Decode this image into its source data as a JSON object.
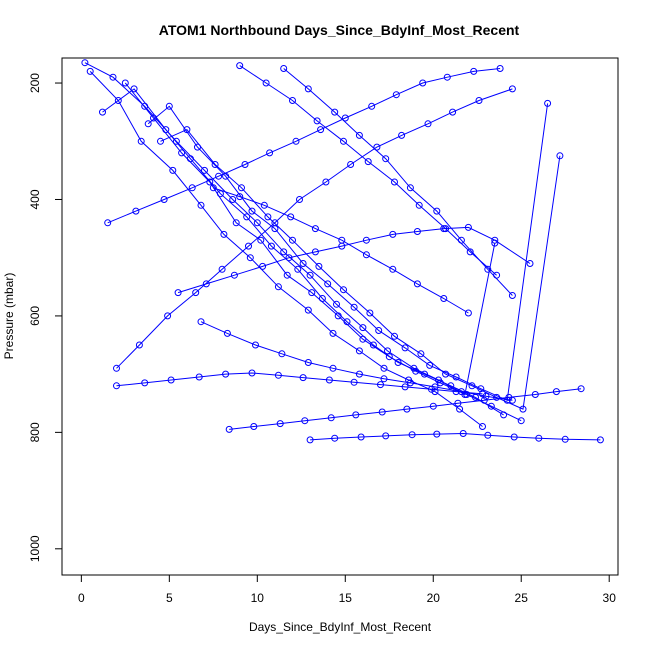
{
  "chart_data": {
    "type": "line",
    "title": "ATOM1 Northbound Days_Since_BdyInf_Most_Recent",
    "xlabel": "Days_Since_BdyInf_Most_Recent",
    "ylabel": "Pressure (mbar)",
    "xlim": [
      0,
      30
    ],
    "ylim": [
      1000,
      170
    ],
    "y_axis_reversed": true,
    "x_ticks": [
      0,
      5,
      10,
      15,
      20,
      25,
      30
    ],
    "y_ticks": [
      200,
      400,
      600,
      800,
      1000
    ],
    "grid": false,
    "legend": "none",
    "series_color": "#0000ff",
    "marker": "open-circle",
    "series": [
      {
        "x": [
          0.5,
          2.1,
          3.4,
          5.2,
          6.8,
          8.1,
          9.6,
          11.2,
          12.9,
          14.3,
          15.8,
          17.2,
          18.6,
          20.1,
          21.5,
          22.8
        ],
        "y": [
          180,
          230,
          300,
          350,
          410,
          460,
          500,
          550,
          590,
          630,
          660,
          690,
          710,
          730,
          760,
          790
        ]
      },
      {
        "x": [
          1.2,
          3.0,
          4.8,
          6.2,
          7.9,
          9.4,
          10.8,
          12.3,
          13.7,
          15.1,
          16.6,
          18.0,
          19.5,
          21.0,
          22.4,
          24.0
        ],
        "y": [
          250,
          210,
          280,
          330,
          390,
          430,
          480,
          520,
          570,
          610,
          650,
          680,
          700,
          720,
          740,
          770
        ]
      },
      {
        "x": [
          2.5,
          4.1,
          5.7,
          7.3,
          8.8,
          10.2,
          11.7,
          13.1,
          14.6,
          16.0,
          17.5,
          19.0,
          20.4,
          21.9,
          23.3,
          25.0
        ],
        "y": [
          200,
          260,
          320,
          370,
          440,
          470,
          530,
          560,
          600,
          640,
          670,
          695,
          715,
          735,
          755,
          780
        ]
      },
      {
        "x": [
          3.8,
          5.0,
          6.6,
          8.2,
          9.7,
          11.0,
          12.6,
          14.0,
          15.5,
          16.9,
          18.4,
          19.8,
          21.3,
          22.7,
          24.2,
          26.5
        ],
        "y": [
          270,
          240,
          310,
          360,
          420,
          450,
          510,
          545,
          585,
          625,
          655,
          685,
          705,
          725,
          745,
          235
        ]
      },
      {
        "x": [
          0.2,
          1.8,
          3.6,
          5.4,
          7.0,
          8.6,
          10.0,
          11.5,
          13.0,
          14.5,
          16.0,
          17.4,
          18.9,
          20.3,
          21.8,
          23.5
        ],
        "y": [
          165,
          190,
          240,
          300,
          350,
          400,
          440,
          490,
          530,
          580,
          620,
          660,
          690,
          710,
          735,
          475
        ]
      },
      {
        "x": [
          4.5,
          6.0,
          7.6,
          9.1,
          10.6,
          12.0,
          13.5,
          14.9,
          16.4,
          17.8,
          19.3,
          20.7,
          22.2,
          23.6,
          25.1,
          27.2
        ],
        "y": [
          300,
          280,
          340,
          380,
          430,
          470,
          515,
          555,
          595,
          635,
          665,
          700,
          720,
          740,
          760,
          325
        ]
      },
      {
        "x": [
          2.0,
          3.3,
          4.9,
          6.5,
          8.0,
          9.5,
          11.0,
          12.4,
          13.9,
          15.3,
          16.8,
          18.2,
          19.7,
          21.1,
          22.6,
          24.5
        ],
        "y": [
          690,
          650,
          600,
          560,
          520,
          480,
          440,
          400,
          370,
          340,
          310,
          290,
          270,
          250,
          230,
          210
        ]
      },
      {
        "x": [
          1.5,
          3.1,
          4.7,
          6.3,
          7.8,
          9.3,
          10.7,
          12.2,
          13.6,
          15.0,
          16.5,
          17.9,
          19.4,
          20.8,
          22.3,
          23.8
        ],
        "y": [
          440,
          420,
          400,
          380,
          360,
          340,
          320,
          300,
          280,
          260,
          240,
          220,
          200,
          190,
          180,
          175
        ]
      },
      {
        "x": [
          8.4,
          9.8,
          11.3,
          12.7,
          14.2,
          15.6,
          17.1,
          18.5,
          20.0,
          21.4,
          22.9,
          24.3,
          25.8,
          27.0,
          28.4
        ],
        "y": [
          795,
          790,
          785,
          780,
          775,
          770,
          765,
          760,
          755,
          750,
          745,
          740,
          735,
          730,
          725
        ]
      },
      {
        "x": [
          2.0,
          3.6,
          5.1,
          6.7,
          8.2,
          9.7,
          11.2,
          12.6,
          14.1,
          15.5,
          17.0,
          18.4,
          19.9,
          21.3,
          22.8
        ],
        "y": [
          720,
          715,
          710,
          705,
          700,
          698,
          702,
          706,
          710,
          714,
          718,
          722,
          726,
          730,
          734
        ]
      },
      {
        "x": [
          13.0,
          14.4,
          15.9,
          17.3,
          18.8,
          20.2,
          21.7,
          23.1,
          24.6,
          26.0,
          27.5,
          29.5
        ],
        "y": [
          813,
          810,
          808,
          806,
          804,
          803,
          802,
          805,
          808,
          810,
          812,
          813
        ]
      },
      {
        "x": [
          5.5,
          7.1,
          8.7,
          10.3,
          11.8,
          13.3,
          14.8,
          16.2,
          17.7,
          19.1,
          20.6,
          22.0,
          23.5,
          25.5
        ],
        "y": [
          560,
          545,
          530,
          515,
          500,
          490,
          480,
          470,
          460,
          455,
          450,
          448,
          470,
          510
        ]
      },
      {
        "x": [
          6.8,
          8.3,
          9.9,
          11.4,
          12.9,
          14.3,
          15.8,
          17.2,
          18.7,
          20.1,
          21.6,
          23.0,
          24.5
        ],
        "y": [
          610,
          630,
          650,
          665,
          680,
          690,
          700,
          708,
          715,
          722,
          730,
          738,
          745
        ]
      },
      {
        "x": [
          9.0,
          10.5,
          12.0,
          13.4,
          14.9,
          16.3,
          17.8,
          19.2,
          20.7,
          22.1,
          23.6
        ],
        "y": [
          170,
          200,
          230,
          265,
          300,
          335,
          370,
          410,
          450,
          490,
          530
        ]
      },
      {
        "x": [
          11.5,
          12.9,
          14.4,
          15.8,
          17.3,
          18.7,
          20.2,
          21.6,
          23.1,
          24.5
        ],
        "y": [
          175,
          210,
          250,
          290,
          330,
          380,
          420,
          470,
          520,
          565
        ]
      },
      {
        "x": [
          7.5,
          9.0,
          10.4,
          11.9,
          13.3,
          14.8,
          16.2,
          17.7,
          19.1,
          20.6,
          22.0
        ],
        "y": [
          380,
          395,
          410,
          430,
          450,
          470,
          495,
          520,
          545,
          570,
          595
        ]
      }
    ]
  }
}
